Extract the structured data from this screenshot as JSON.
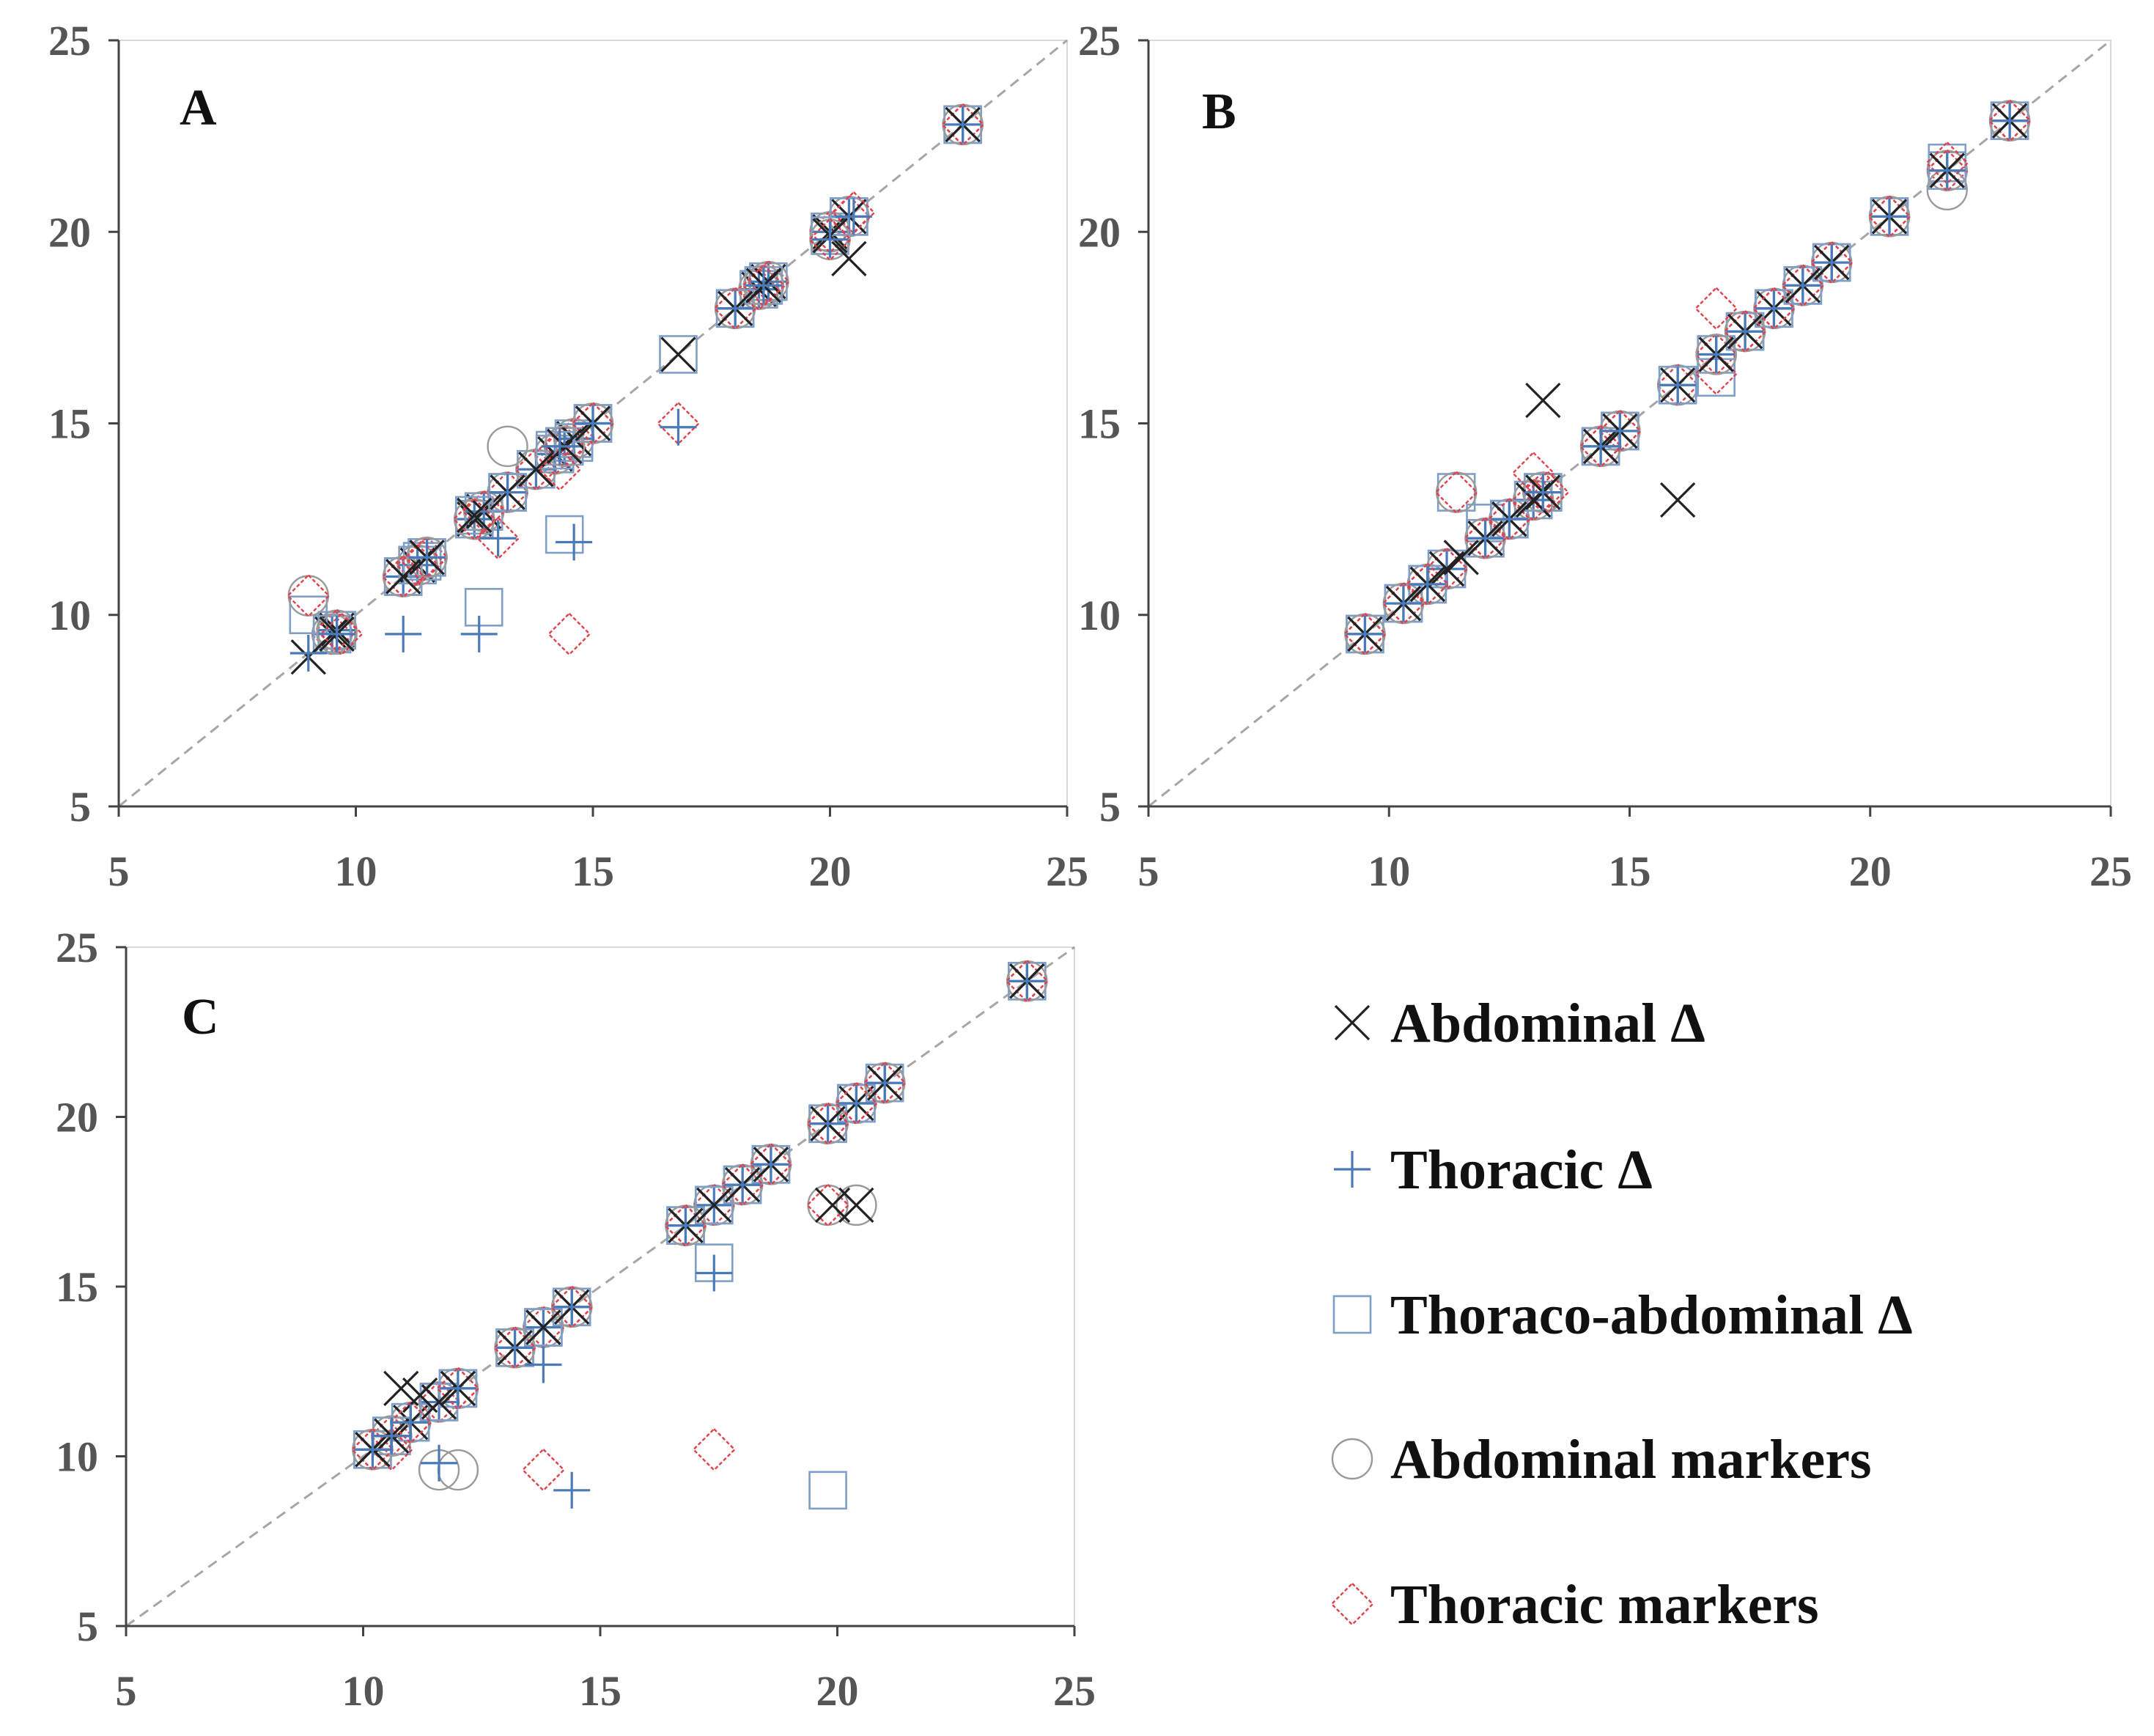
{
  "colors": {
    "abdominal_delta": "#222222",
    "thoracic_delta": "#4a7ab8",
    "thoraco_abdominal_delta": "#7f9fc9",
    "abdominal_markers": "#9a9a9a",
    "thoracic_markers": "#e0414a",
    "axis": "#444444",
    "tick_text": "#555555",
    "diagonal": "#a6a6a6",
    "frame": "#d9d9d9"
  },
  "legend": [
    {
      "label": "Abdominal  Δ",
      "marker": "cross-x-icon",
      "series": "abdominal_delta"
    },
    {
      "label": "Thoracic  Δ",
      "marker": "plus-icon",
      "series": "thoracic_delta"
    },
    {
      "label": "Thoraco-abdominal  Δ",
      "marker": "square-icon",
      "series": "thoraco_abdominal_delta"
    },
    {
      "label": "Abdominal markers",
      "marker": "circle-icon",
      "series": "abdominal_markers"
    },
    {
      "label": "Thoracic markers",
      "marker": "diamond-icon",
      "series": "thoracic_markers"
    }
  ],
  "chart_data": [
    {
      "type": "scatter",
      "title": "A",
      "xlim": [
        5,
        25
      ],
      "ylim": [
        5,
        25
      ],
      "xticks": [
        "5",
        "10",
        "15",
        "20",
        "25"
      ],
      "yticks": [
        "5",
        "10",
        "15",
        "20",
        "25"
      ],
      "identity_line": true,
      "ref_x": [
        9.5,
        9.6,
        11,
        11.3,
        11.5,
        12.5,
        12.7,
        13.2,
        13.8,
        14.2,
        14.4,
        14.6,
        15,
        18,
        18.5,
        18.7,
        20,
        20.4,
        22.8
      ],
      "series": [
        {
          "name": "Abdominal  Δ",
          "key": "abdominal_delta",
          "x": [
            9.0,
            9.6,
            11,
            11.5,
            12.5,
            13.2,
            13.8,
            14.4,
            15,
            16.8,
            18,
            18.6,
            20,
            20.4,
            22.8
          ],
          "y": [
            8.9,
            9.5,
            11,
            11.5,
            12.6,
            13.2,
            13.8,
            14.4,
            15,
            16.8,
            18,
            18.6,
            19.9,
            19.3,
            22.8
          ]
        },
        {
          "name": "Thoracic  Δ",
          "key": "thoracic_delta",
          "x": [
            9.0,
            9.6,
            11,
            11.5,
            12.6,
            13.0,
            13.2,
            14.3,
            14.6,
            15,
            16.8,
            18,
            18.6,
            20,
            20.5,
            22.8
          ],
          "y": [
            9.0,
            9.5,
            9.5,
            11.5,
            9.5,
            12.0,
            13.2,
            14.4,
            11.9,
            15,
            14.9,
            18,
            18.6,
            19.8,
            20.4,
            22.8
          ]
        },
        {
          "name": "Thoraco-abdominal  Δ",
          "key": "thoraco_abdominal_delta",
          "x": [
            9.0,
            9.5,
            11,
            11.4,
            12.5,
            12.7,
            13.2,
            14.2,
            14.4,
            14.6,
            15,
            16.8,
            18,
            18.6,
            20,
            20.4,
            22.8
          ],
          "y": [
            10.0,
            9.5,
            11,
            11.4,
            12.6,
            10.2,
            13.2,
            14.3,
            12.1,
            14.5,
            15,
            16.8,
            18,
            18.6,
            19.9,
            20.4,
            22.8
          ]
        },
        {
          "name": "Abdominal markers",
          "key": "abdominal_markers",
          "x": [
            9.0,
            9.6,
            11,
            11.5,
            12.5,
            13.2,
            14.4,
            15,
            18,
            18.6,
            20,
            22.8
          ],
          "y": [
            10.5,
            9.5,
            11,
            11.5,
            12.5,
            14.4,
            14.4,
            15,
            18,
            18.6,
            19.8,
            22.8
          ]
        },
        {
          "name": "Thoracic markers",
          "key": "thoracic_markers",
          "x": [
            9.0,
            9.7,
            11,
            11.4,
            12.5,
            13.0,
            14.3,
            14.5,
            15,
            16.8,
            18,
            18.6,
            20,
            20.5,
            22.8
          ],
          "y": [
            10.5,
            9.5,
            11,
            11.4,
            12.5,
            12.0,
            13.8,
            9.5,
            15,
            15.0,
            18,
            18.6,
            19.8,
            20.5,
            22.8
          ]
        }
      ]
    },
    {
      "type": "scatter",
      "title": "B",
      "xlim": [
        5,
        25
      ],
      "ylim": [
        5,
        25
      ],
      "xticks": [
        "5",
        "10",
        "15",
        "20",
        "25"
      ],
      "yticks": [
        "5",
        "10",
        "15",
        "20",
        "25"
      ],
      "identity_line": true,
      "ref_x": [
        9.5,
        10.3,
        10.8,
        11.2,
        12.0,
        12.5,
        13.0,
        13.2,
        14.4,
        14.8,
        16.0,
        16.8,
        17.4,
        18.0,
        18.6,
        19.2,
        20.4,
        21.6,
        22.9
      ],
      "series": [
        {
          "name": "Abdominal  Δ",
          "key": "abdominal_delta",
          "x": [
            9.5,
            10.3,
            10.8,
            11.2,
            11.5,
            12.0,
            12.5,
            13.0,
            13.2,
            13.2,
            14.4,
            14.8,
            16.0,
            16.8,
            17.4,
            18.6,
            19.2,
            20.4,
            21.6,
            22.9
          ],
          "y": [
            9.5,
            10.3,
            10.8,
            11.2,
            11.5,
            12.0,
            12.5,
            13.0,
            13.2,
            15.6,
            14.4,
            14.8,
            13.0,
            16.8,
            17.4,
            18.6,
            19.2,
            20.4,
            21.6,
            22.9
          ]
        },
        {
          "name": "Thoracic  Δ",
          "key": "thoracic_delta",
          "x": [
            9.5,
            10.3,
            10.8,
            12.0,
            12.5,
            13.2,
            14.4,
            14.8,
            16.0,
            16.8,
            17.4,
            18.0,
            18.6,
            19.2,
            20.4,
            21.6,
            22.9
          ],
          "y": [
            9.5,
            10.3,
            10.8,
            12.0,
            12.5,
            13.2,
            14.4,
            14.8,
            16.0,
            16.8,
            17.4,
            18.0,
            18.6,
            19.2,
            20.4,
            21.6,
            22.9
          ]
        },
        {
          "name": "Thoraco-abdominal  Δ",
          "key": "thoraco_abdominal_delta",
          "x": [
            9.5,
            10.3,
            10.8,
            11.4,
            12.0,
            12.5,
            13.2,
            14.4,
            14.8,
            16.0,
            16.8,
            17.4,
            18.0,
            18.6,
            19.2,
            20.4,
            21.6,
            22.9
          ],
          "y": [
            9.5,
            10.3,
            10.8,
            13.2,
            12.4,
            12.5,
            13.2,
            14.4,
            14.8,
            16.0,
            16.2,
            17.4,
            18.0,
            18.6,
            19.2,
            20.4,
            21.8,
            22.9
          ]
        },
        {
          "name": "Abdominal markers",
          "key": "abdominal_markers",
          "x": [
            9.5,
            10.3,
            11.4,
            12.0,
            13.2,
            14.4,
            14.8,
            16.8,
            17.4,
            20.4,
            21.6,
            22.9
          ],
          "y": [
            9.5,
            10.3,
            13.2,
            12.0,
            13.2,
            14.4,
            14.8,
            16.8,
            17.4,
            20.4,
            21.1,
            22.9
          ]
        },
        {
          "name": "Thoracic markers",
          "key": "thoracic_markers",
          "x": [
            9.5,
            10.3,
            10.8,
            11.4,
            12.0,
            12.5,
            13.0,
            13.3,
            14.4,
            14.8,
            16.8,
            16.8,
            17.4,
            18.0,
            18.6,
            19.2,
            20.4,
            21.6,
            22.9
          ],
          "y": [
            9.5,
            10.3,
            10.8,
            13.2,
            12.0,
            12.5,
            13.7,
            13.2,
            14.4,
            14.8,
            16.3,
            18.0,
            17.4,
            18.0,
            18.6,
            19.2,
            20.4,
            21.8,
            22.9
          ]
        }
      ]
    },
    {
      "type": "scatter",
      "title": "C",
      "xlim": [
        5,
        25
      ],
      "ylim": [
        5,
        25
      ],
      "xticks": [
        "5",
        "10",
        "15",
        "20",
        "25"
      ],
      "yticks": [
        "5",
        "10",
        "15",
        "20",
        "25"
      ],
      "identity_line": true,
      "ref_x": [
        10.2,
        10.6,
        11.0,
        11.6,
        12.0,
        13.2,
        13.8,
        14.4,
        16.8,
        17.4,
        18.0,
        18.6,
        19.8,
        20.4,
        21.0,
        24.0
      ],
      "series": [
        {
          "name": "Abdominal  Δ",
          "key": "abdominal_delta",
          "x": [
            10.2,
            10.6,
            10.8,
            11.2,
            11.6,
            12.0,
            13.2,
            13.8,
            14.4,
            16.8,
            17.4,
            18.0,
            18.6,
            19.8,
            19.9,
            20.4,
            21.0,
            24.0
          ],
          "y": [
            10.2,
            10.6,
            12.0,
            11.8,
            11.6,
            12.0,
            13.2,
            13.8,
            14.4,
            16.8,
            17.4,
            18.0,
            18.6,
            19.8,
            17.4,
            17.4,
            21.0,
            24.0
          ]
        },
        {
          "name": "Thoracic  Δ",
          "key": "thoracic_delta",
          "x": [
            10.2,
            10.6,
            11.0,
            11.6,
            12.0,
            13.2,
            13.8,
            14.4,
            14.4,
            16.8,
            17.4,
            18.0,
            18.6,
            19.8,
            20.4,
            21.0,
            24.0
          ],
          "y": [
            10.2,
            10.6,
            11.0,
            9.8,
            12.0,
            13.2,
            12.7,
            14.4,
            9.0,
            16.8,
            15.4,
            18.0,
            18.6,
            19.8,
            20.4,
            21.0,
            24.0
          ]
        },
        {
          "name": "Thoraco-abdominal  Δ",
          "key": "thoraco_abdominal_delta",
          "x": [
            10.2,
            10.6,
            11.0,
            11.6,
            12.0,
            13.2,
            13.8,
            14.4,
            16.8,
            17.4,
            17.4,
            18.0,
            18.6,
            19.8,
            19.8,
            20.4,
            21.0,
            24.0
          ],
          "y": [
            10.2,
            10.6,
            11.0,
            11.6,
            12.0,
            13.2,
            13.8,
            14.4,
            16.8,
            17.4,
            15.7,
            18.0,
            18.6,
            19.8,
            9.0,
            20.4,
            21.0,
            24.0
          ]
        },
        {
          "name": "Abdominal markers",
          "key": "abdominal_markers",
          "x": [
            10.2,
            10.6,
            11.6,
            12.0,
            13.2,
            14.4,
            16.8,
            18.0,
            18.6,
            19.8,
            19.8,
            20.4,
            21.0,
            24.0
          ],
          "y": [
            10.2,
            10.6,
            9.6,
            9.6,
            13.2,
            14.4,
            16.8,
            18.0,
            18.6,
            19.8,
            17.4,
            17.4,
            21.0,
            24.0
          ]
        },
        {
          "name": "Thoracic markers",
          "key": "thoracic_markers",
          "x": [
            10.2,
            10.6,
            11.0,
            12.0,
            13.2,
            13.8,
            14.4,
            16.8,
            17.4,
            18.0,
            18.6,
            19.8,
            19.8,
            20.4,
            21.0,
            24.0
          ],
          "y": [
            10.2,
            10.2,
            11.0,
            12.0,
            13.2,
            9.6,
            14.4,
            16.8,
            10.2,
            18.0,
            18.6,
            19.8,
            17.4,
            20.4,
            21.0,
            24.0
          ]
        }
      ]
    }
  ]
}
